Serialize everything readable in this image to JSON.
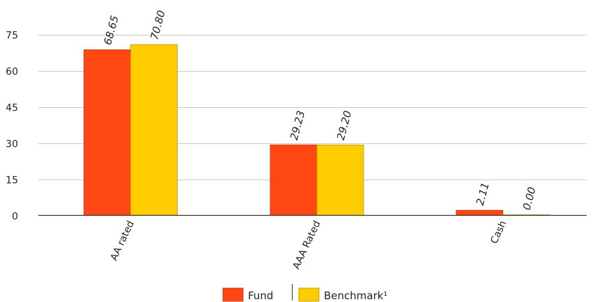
{
  "chart_data": {
    "type": "bar",
    "categories": [
      "AA rated",
      "AAA Rated",
      "Cash"
    ],
    "series": [
      {
        "name": "Fund",
        "values": [
          68.65,
          29.23,
          2.11
        ],
        "labels": [
          "68.65",
          "29.23",
          "2.11"
        ],
        "color": "#ff4713",
        "stroke": "#b8320a"
      },
      {
        "name": "Benchmark¹",
        "values": [
          70.8,
          29.2,
          0.0
        ],
        "labels": [
          "70.80",
          "29.20",
          "0.00"
        ],
        "color": "#ffcc00",
        "stroke": "#b89400"
      }
    ],
    "yticks": [
      0,
      15,
      30,
      45,
      60,
      75
    ],
    "ylim": [
      0,
      80
    ],
    "grid": true,
    "legend": "bottom-center"
  }
}
